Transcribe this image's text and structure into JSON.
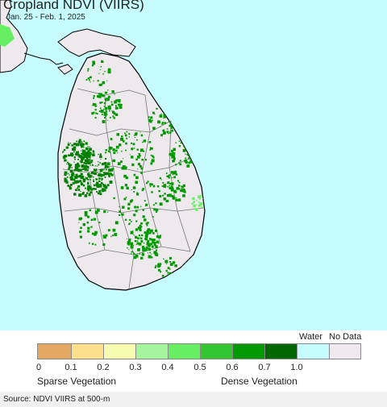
{
  "map": {
    "title": "Cropland NDVI (VIIRS)",
    "date_range": "Jan. 25 - Feb. 1, 2025",
    "colors": {
      "water": "#c6fcfd",
      "land_no_data": "#ede9ec",
      "vegetation_dark": "#007f00",
      "vegetation_mid": "#009900",
      "district_border": "#777777",
      "coast": "#000000"
    }
  },
  "legend": {
    "water_label": "Water",
    "no_data_label": "No Data",
    "swatches": [
      {
        "color": "#e3a963"
      },
      {
        "color": "#fde08c"
      },
      {
        "color": "#f7fdb0"
      },
      {
        "color": "#a4f59d"
      },
      {
        "color": "#66ef63"
      },
      {
        "color": "#33c633"
      },
      {
        "color": "#009900"
      },
      {
        "color": "#006600"
      },
      {
        "color": "#c6fcfd"
      },
      {
        "color": "#ede9ec"
      }
    ],
    "ticks": [
      "0",
      "0.1",
      "0.2",
      "0.3",
      "0.4",
      "0.5",
      "0.6",
      "0.7",
      "1.0"
    ],
    "sparse_label": "Sparse Vegetation",
    "dense_label": "Dense Vegetation"
  },
  "footer": {
    "source": "Source: NDVI VIIRS at 500-m"
  }
}
